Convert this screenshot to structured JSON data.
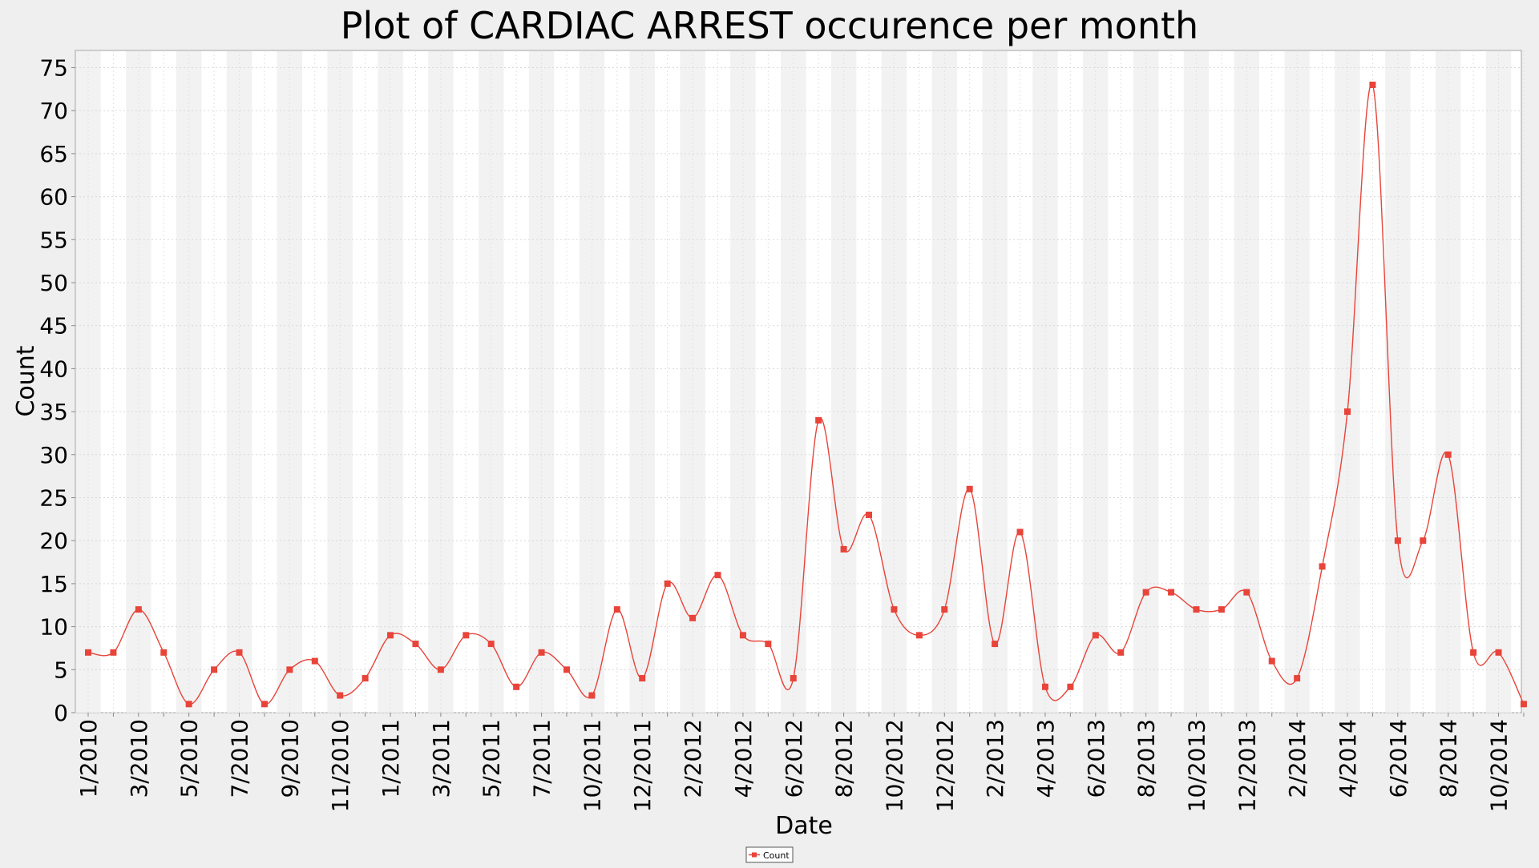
{
  "chart_data": {
    "type": "line",
    "title": "Plot of CARDIAC ARREST occurence per month",
    "xlabel": "Date",
    "ylabel": "Count",
    "ylim": [
      0,
      77
    ],
    "yticks": [
      0,
      5,
      10,
      15,
      20,
      25,
      30,
      35,
      40,
      45,
      50,
      55,
      60,
      65,
      70,
      75
    ],
    "grid": true,
    "legend_position": "bottom-center",
    "x": [
      "1/2010",
      "2/2010",
      "3/2010",
      "4/2010",
      "5/2010",
      "6/2010",
      "7/2010",
      "8/2010",
      "9/2010",
      "10/2010",
      "11/2010",
      "12/2010",
      "1/2011",
      "2/2011",
      "3/2011",
      "4/2011",
      "5/2011",
      "6/2011",
      "7/2011",
      "8/2011",
      "10/2011",
      "11/2011",
      "12/2011",
      "1/2012",
      "2/2012",
      "3/2012",
      "4/2012",
      "5/2012",
      "6/2012",
      "7/2012",
      "8/2012",
      "9/2012",
      "10/2012",
      "11/2012",
      "12/2012",
      "1/2013",
      "2/2013",
      "3/2013",
      "4/2013",
      "5/2013",
      "6/2013",
      "7/2013",
      "8/2013",
      "9/2013",
      "10/2013",
      "11/2013",
      "12/2013",
      "1/2014",
      "2/2014",
      "3/2014",
      "4/2014",
      "5/2014",
      "6/2014",
      "7/2014",
      "8/2014",
      "9/2014",
      "10/2014",
      "11/2014"
    ],
    "x_tick_labels": [
      "1/2010",
      "",
      "3/2010",
      "",
      "5/2010",
      "",
      "7/2010",
      "",
      "9/2010",
      "",
      "11/2010",
      "",
      "1/2011",
      "",
      "3/2011",
      "",
      "5/2011",
      "",
      "7/2011",
      "",
      "10/2011",
      "",
      "12/2011",
      "",
      "2/2012",
      "",
      "4/2012",
      "",
      "6/2012",
      "",
      "8/2012",
      "",
      "10/2012",
      "",
      "12/2012",
      "",
      "2/2013",
      "",
      "4/2013",
      "",
      "6/2013",
      "",
      "8/2013",
      "",
      "10/2013",
      "",
      "12/2013",
      "",
      "2/2014",
      "",
      "4/2014",
      "",
      "6/2014",
      "",
      "8/2014",
      "",
      "10/2014",
      ""
    ],
    "series": [
      {
        "name": "Count",
        "color": "#e8443a",
        "values": [
          7,
          7,
          12,
          7,
          1,
          5,
          7,
          1,
          5,
          6,
          2,
          4,
          9,
          8,
          5,
          9,
          8,
          3,
          7,
          5,
          2,
          12,
          4,
          15,
          11,
          16,
          9,
          8,
          4,
          34,
          19,
          23,
          12,
          9,
          12,
          26,
          8,
          21,
          3,
          3,
          9,
          7,
          14,
          14,
          12,
          12,
          14,
          6,
          4,
          17,
          35,
          73,
          20,
          20,
          30,
          7,
          7,
          1
        ]
      }
    ]
  }
}
